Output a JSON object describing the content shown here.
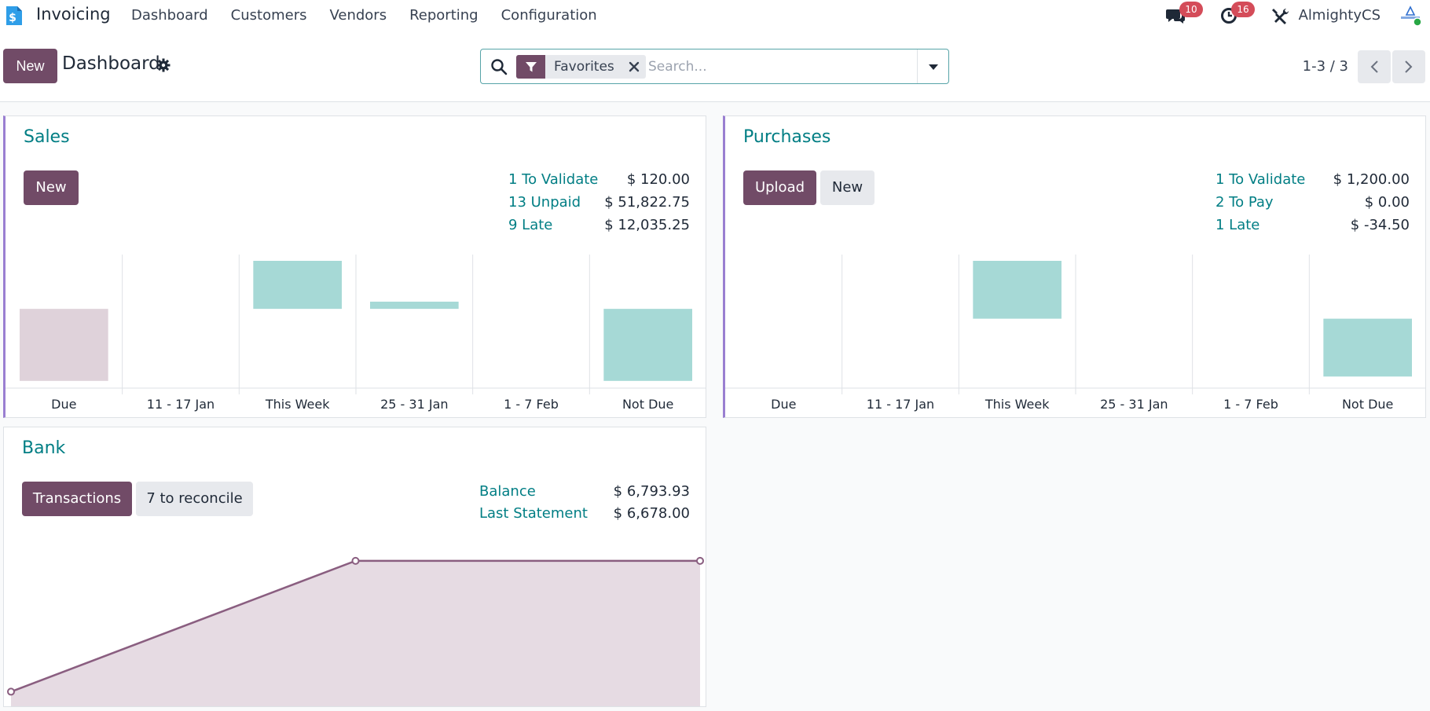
{
  "app": {
    "name": "Invoicing"
  },
  "menu": [
    "Dashboard",
    "Customers",
    "Vendors",
    "Reporting",
    "Configuration"
  ],
  "systray": {
    "messages_count": "10",
    "activities_count": "16",
    "user": "AlmightyCS"
  },
  "control_panel": {
    "new_label": "New",
    "title": "Dashboard",
    "facet": "Favorites",
    "search_placeholder": "Search...",
    "pager": "1-3 / 3"
  },
  "sales": {
    "title": "Sales",
    "new_label": "New",
    "stats": [
      {
        "label": "1 To Validate",
        "value": "$ 120.00"
      },
      {
        "label": "13 Unpaid",
        "value": "$ 51,822.75"
      },
      {
        "label": "9 Late",
        "value": "$ 12,035.25"
      }
    ]
  },
  "purchases": {
    "title": "Purchases",
    "upload_label": "Upload",
    "new_label": "New",
    "stats": [
      {
        "label": "1 To Validate",
        "value": "$ 1,200.00"
      },
      {
        "label": "2 To Pay",
        "value": "$ 0.00"
      },
      {
        "label": "1 Late",
        "value": "$ -34.50"
      }
    ]
  },
  "bank": {
    "title": "Bank",
    "transactions_label": "Transactions",
    "reconcile_label": "7 to reconcile",
    "stats": [
      {
        "label": "Balance",
        "value": "$ 6,793.93"
      },
      {
        "label": "Last Statement",
        "value": "$ 6,678.00"
      }
    ]
  },
  "colors": {
    "accent": "#714b67",
    "teal": "#017e84",
    "bar_positive": "#a6d9d6",
    "bar_past": "#dfd2da",
    "line": "#8a5e80"
  },
  "chart_data": [
    {
      "type": "bar",
      "categories": [
        "Due",
        "11 - 17 Jan",
        "This Week",
        "25 - 31 Jan",
        "1 - 7 Feb",
        "Not Due"
      ],
      "values": [
        -6000,
        0,
        4000,
        600,
        0,
        -6000
      ],
      "colors": [
        "#dfd2da",
        "#a6d9d6",
        "#a6d9d6",
        "#a6d9d6",
        "#a6d9d6",
        "#a6d9d6"
      ],
      "ylim": [
        -6600,
        4000
      ],
      "grid": true
    },
    {
      "type": "bar",
      "categories": [
        "Due",
        "11 - 17 Jan",
        "This Week",
        "25 - 31 Jan",
        "1 - 7 Feb",
        "Not Due"
      ],
      "values": [
        0,
        0,
        1000,
        0,
        0,
        -1000
      ],
      "colors": [
        "#a6d9d6",
        "#a6d9d6",
        "#a6d9d6",
        "#a6d9d6",
        "#a6d9d6",
        "#a6d9d6"
      ],
      "ylim": [
        -1200,
        1000
      ],
      "grid": true
    },
    {
      "type": "area",
      "x": [
        0,
        1,
        2
      ],
      "values": [
        5000,
        6793.93,
        6793.93
      ],
      "ylim": [
        4800,
        6900
      ],
      "grid": false
    }
  ]
}
